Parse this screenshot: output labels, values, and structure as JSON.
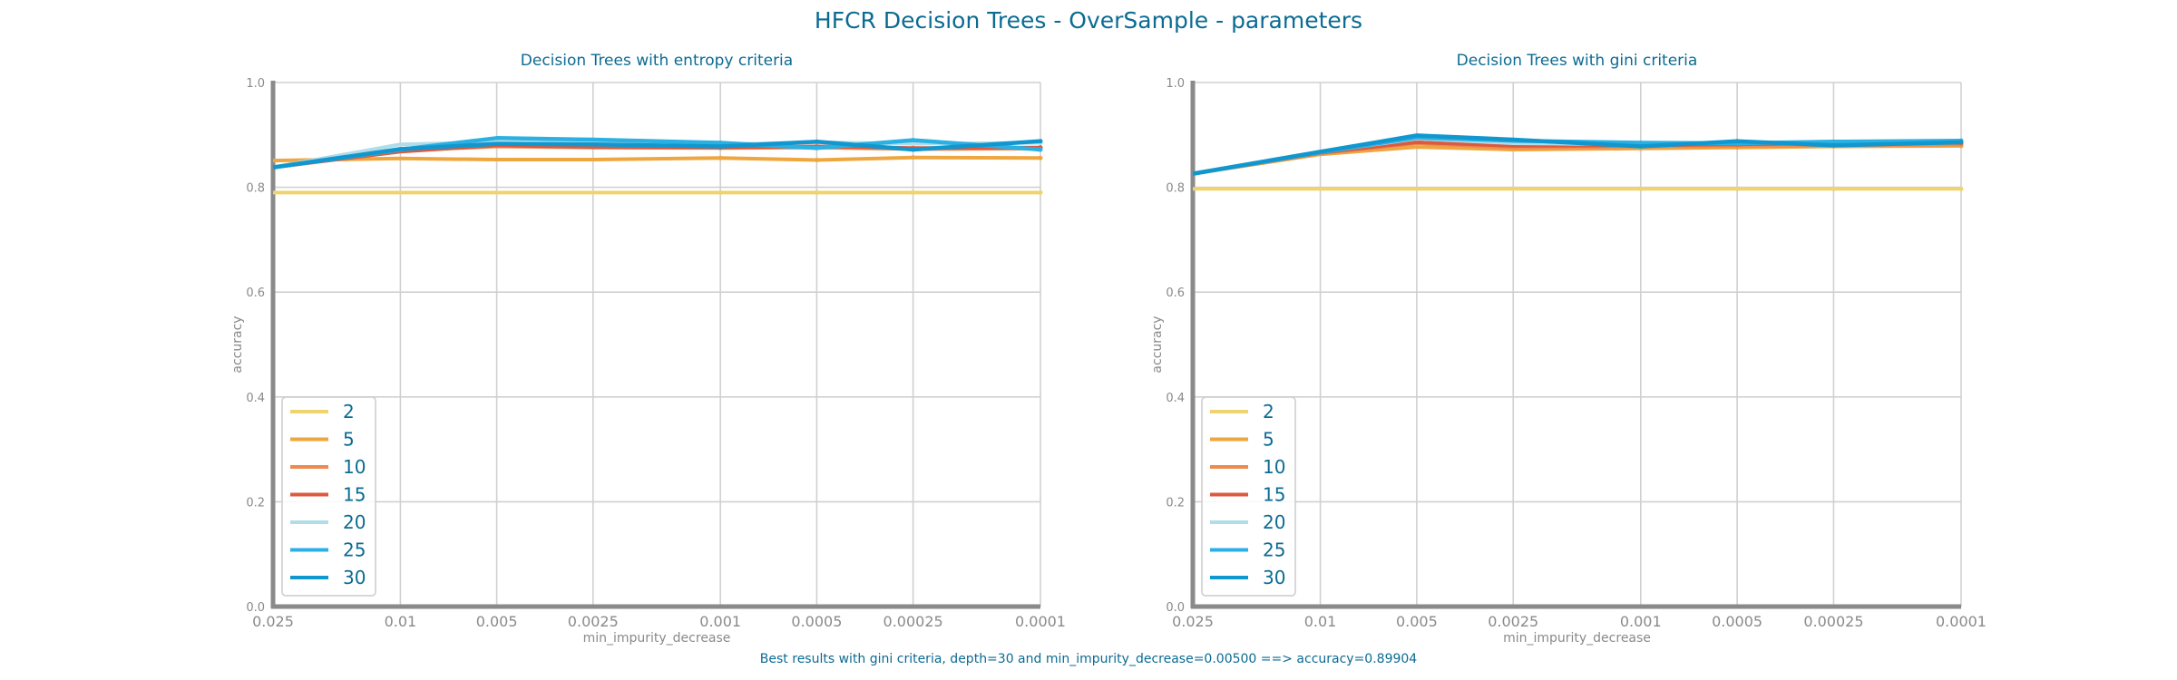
{
  "suptitle": "HFCR Decision Trees - OverSample - parameters",
  "footer": "Best results with gini criteria, depth=30 and min_impurity_decrease=0.00500 ==> accuracy=0.89904",
  "colors": {
    "title": "#0b6b93",
    "axis": "#8a8a8a",
    "grid": "#d0d0d0",
    "series": [
      "#efd36f",
      "#eea63f",
      "#ee8a50",
      "#dc5a3f",
      "#b0dde8",
      "#2ab0e3",
      "#1097cf"
    ]
  },
  "chart_data": [
    {
      "type": "line",
      "title": "Decision Trees with entropy criteria",
      "xlabel": "min_impurity_decrease",
      "ylabel": "accuracy",
      "x_scale": "log",
      "x_inverted": true,
      "x": [
        0.025,
        0.01,
        0.005,
        0.0025,
        0.001,
        0.0005,
        0.00025,
        0.0001
      ],
      "xticks": [
        "0.025",
        "0.01",
        "0.005",
        "0.0025",
        "0.001",
        "0.0005",
        "0.00025",
        "0.0001"
      ],
      "ylim": [
        0,
        1.0
      ],
      "yticks": [
        "0.0",
        "0.2",
        "0.4",
        "0.6",
        "0.8",
        "1.0"
      ],
      "grid": true,
      "legend_position": "lower-left",
      "series": [
        {
          "name": "2",
          "values": [
            0.79,
            0.79,
            0.79,
            0.79,
            0.79,
            0.79,
            0.79,
            0.79
          ]
        },
        {
          "name": "5",
          "values": [
            0.851,
            0.855,
            0.853,
            0.853,
            0.856,
            0.852,
            0.857,
            0.856
          ]
        },
        {
          "name": "10",
          "values": [
            0.838,
            0.87,
            0.878,
            0.876,
            0.875,
            0.876,
            0.873,
            0.874
          ]
        },
        {
          "name": "15",
          "values": [
            0.838,
            0.868,
            0.88,
            0.877,
            0.876,
            0.878,
            0.875,
            0.876
          ]
        },
        {
          "name": "20",
          "values": [
            0.838,
            0.882,
            0.886,
            0.884,
            0.882,
            0.886,
            0.883,
            0.885
          ]
        },
        {
          "name": "25",
          "values": [
            0.838,
            0.872,
            0.894,
            0.891,
            0.885,
            0.875,
            0.89,
            0.872
          ]
        },
        {
          "name": "30",
          "values": [
            0.838,
            0.873,
            0.883,
            0.882,
            0.878,
            0.887,
            0.872,
            0.888
          ]
        }
      ]
    },
    {
      "type": "line",
      "title": "Decision Trees with gini criteria",
      "xlabel": "min_impurity_decrease",
      "ylabel": "accuracy",
      "x_scale": "log",
      "x_inverted": true,
      "x": [
        0.025,
        0.01,
        0.005,
        0.0025,
        0.001,
        0.0005,
        0.00025,
        0.0001
      ],
      "xticks": [
        "0.025",
        "0.01",
        "0.005",
        "0.0025",
        "0.001",
        "0.0005",
        "0.00025",
        "0.0001"
      ],
      "ylim": [
        0,
        1.0
      ],
      "yticks": [
        "0.0",
        "0.2",
        "0.4",
        "0.6",
        "0.8",
        "1.0"
      ],
      "grid": true,
      "legend_position": "lower-left",
      "series": [
        {
          "name": "2",
          "values": [
            0.797,
            0.797,
            0.797,
            0.797,
            0.797,
            0.797,
            0.797,
            0.797
          ]
        },
        {
          "name": "5",
          "values": [
            0.826,
            0.863,
            0.877,
            0.872,
            0.874,
            0.876,
            0.878,
            0.879
          ]
        },
        {
          "name": "10",
          "values": [
            0.826,
            0.865,
            0.884,
            0.876,
            0.878,
            0.879,
            0.88,
            0.882
          ]
        },
        {
          "name": "15",
          "values": [
            0.826,
            0.866,
            0.886,
            0.879,
            0.88,
            0.882,
            0.884,
            0.885
          ]
        },
        {
          "name": "20",
          "values": [
            0.826,
            0.867,
            0.893,
            0.884,
            0.882,
            0.886,
            0.884,
            0.888
          ]
        },
        {
          "name": "25",
          "values": [
            0.826,
            0.867,
            0.895,
            0.889,
            0.885,
            0.884,
            0.887,
            0.889
          ]
        },
        {
          "name": "30",
          "values": [
            0.826,
            0.868,
            0.899,
            0.891,
            0.878,
            0.888,
            0.88,
            0.886
          ]
        }
      ]
    }
  ]
}
